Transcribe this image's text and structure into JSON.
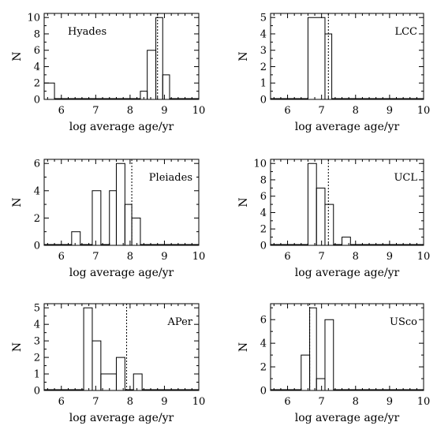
{
  "chart_data": [
    {
      "type": "bar",
      "title": "Hyades",
      "xlabel": "log average age/yr",
      "ylabel": "N",
      "xlim": [
        5.5,
        10
      ],
      "ylim": [
        0,
        10.5
      ],
      "xticks": [
        6,
        7,
        8,
        9,
        10
      ],
      "yticks": [
        0,
        2,
        4,
        6,
        8,
        10
      ],
      "median": 8.8,
      "bins": [
        {
          "x0": 5.5,
          "x1": 5.8,
          "n": 2
        },
        {
          "x0": 5.8,
          "x1": 8.3,
          "n": 0
        },
        {
          "x0": 8.3,
          "x1": 8.5,
          "n": 1
        },
        {
          "x0": 8.5,
          "x1": 8.75,
          "n": 6
        },
        {
          "x0": 8.75,
          "x1": 8.95,
          "n": 10
        },
        {
          "x0": 8.95,
          "x1": 9.15,
          "n": 3
        },
        {
          "x0": 9.15,
          "x1": 10,
          "n": 0
        }
      ]
    },
    {
      "type": "bar",
      "title": "LCC",
      "xlabel": "log average age/yr",
      "ylabel": "N",
      "xlim": [
        5.5,
        10
      ],
      "ylim": [
        0,
        5.25
      ],
      "xticks": [
        6,
        7,
        8,
        9,
        10
      ],
      "yticks": [
        0,
        1,
        2,
        3,
        4,
        5
      ],
      "median": 7.2,
      "bins": [
        {
          "x0": 5.5,
          "x1": 6.6,
          "n": 0
        },
        {
          "x0": 6.6,
          "x1": 7.1,
          "n": 5
        },
        {
          "x0": 7.1,
          "x1": 7.3,
          "n": 4
        },
        {
          "x0": 7.3,
          "x1": 10,
          "n": 0
        }
      ]
    },
    {
      "type": "bar",
      "title": "Pleiades",
      "xlabel": "log average age/yr",
      "ylabel": "N",
      "xlim": [
        5.5,
        10
      ],
      "ylim": [
        0,
        6.3
      ],
      "xticks": [
        6,
        7,
        8,
        9,
        10
      ],
      "yticks": [
        0,
        2,
        4,
        6
      ],
      "median": 8.05,
      "bins": [
        {
          "x0": 5.5,
          "x1": 6.3,
          "n": 0
        },
        {
          "x0": 6.3,
          "x1": 6.55,
          "n": 1
        },
        {
          "x0": 6.55,
          "x1": 6.9,
          "n": 0
        },
        {
          "x0": 6.9,
          "x1": 7.15,
          "n": 4
        },
        {
          "x0": 7.15,
          "x1": 7.4,
          "n": 0
        },
        {
          "x0": 7.4,
          "x1": 7.6,
          "n": 4
        },
        {
          "x0": 7.6,
          "x1": 7.85,
          "n": 6
        },
        {
          "x0": 7.85,
          "x1": 8.05,
          "n": 3
        },
        {
          "x0": 8.05,
          "x1": 8.3,
          "n": 2
        },
        {
          "x0": 8.3,
          "x1": 10,
          "n": 0
        }
      ]
    },
    {
      "type": "bar",
      "title": "UCL",
      "xlabel": "log average age/yr",
      "ylabel": "N",
      "xlim": [
        5.5,
        10
      ],
      "ylim": [
        0,
        10.5
      ],
      "xticks": [
        6,
        7,
        8,
        9,
        10
      ],
      "yticks": [
        0,
        2,
        4,
        6,
        8,
        10
      ],
      "median": 7.2,
      "bins": [
        {
          "x0": 5.5,
          "x1": 6.6,
          "n": 0
        },
        {
          "x0": 6.6,
          "x1": 6.85,
          "n": 10
        },
        {
          "x0": 6.85,
          "x1": 7.1,
          "n": 7
        },
        {
          "x0": 7.1,
          "x1": 7.35,
          "n": 5
        },
        {
          "x0": 7.35,
          "x1": 7.6,
          "n": 0
        },
        {
          "x0": 7.6,
          "x1": 7.85,
          "n": 1
        },
        {
          "x0": 7.85,
          "x1": 10,
          "n": 0
        }
      ]
    },
    {
      "type": "bar",
      "title": "APer",
      "xlabel": "log average age/yr",
      "ylabel": "N",
      "xlim": [
        5.5,
        10
      ],
      "ylim": [
        0,
        5.25
      ],
      "xticks": [
        6,
        7,
        8,
        9,
        10
      ],
      "yticks": [
        0,
        1,
        2,
        3,
        4,
        5
      ],
      "median": 7.9,
      "bins": [
        {
          "x0": 5.5,
          "x1": 6.65,
          "n": 0
        },
        {
          "x0": 6.65,
          "x1": 6.9,
          "n": 5
        },
        {
          "x0": 6.9,
          "x1": 7.15,
          "n": 3
        },
        {
          "x0": 7.15,
          "x1": 7.6,
          "n": 1
        },
        {
          "x0": 7.6,
          "x1": 7.85,
          "n": 2
        },
        {
          "x0": 7.85,
          "x1": 8.1,
          "n": 0
        },
        {
          "x0": 8.1,
          "x1": 8.35,
          "n": 1
        },
        {
          "x0": 8.35,
          "x1": 10,
          "n": 0
        }
      ]
    },
    {
      "type": "bar",
      "title": "USco",
      "xlabel": "log average age/yr",
      "ylabel": "N",
      "xlim": [
        5.5,
        10
      ],
      "ylim": [
        0,
        7.35
      ],
      "xticks": [
        6,
        7,
        8,
        9,
        10
      ],
      "yticks": [
        0,
        2,
        4,
        6
      ],
      "median": 6.65,
      "bins": [
        {
          "x0": 5.5,
          "x1": 6.4,
          "n": 0
        },
        {
          "x0": 6.4,
          "x1": 6.65,
          "n": 3
        },
        {
          "x0": 6.65,
          "x1": 6.85,
          "n": 7
        },
        {
          "x0": 6.85,
          "x1": 7.1,
          "n": 1
        },
        {
          "x0": 7.1,
          "x1": 7.35,
          "n": 6
        },
        {
          "x0": 7.35,
          "x1": 10,
          "n": 0
        }
      ]
    }
  ]
}
